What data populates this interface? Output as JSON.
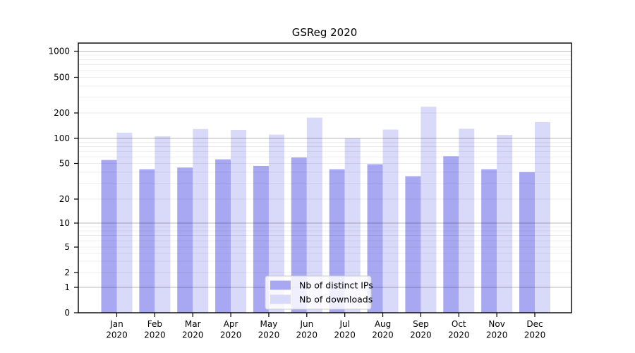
{
  "chart_data": {
    "type": "bar",
    "title": "GSReg 2020",
    "categories": [
      "Jan 2020",
      "Feb 2020",
      "Mar 2020",
      "Apr 2020",
      "May 2020",
      "Jun 2020",
      "Jul 2020",
      "Aug 2020",
      "Sep 2020",
      "Oct 2020",
      "Nov 2020",
      "Dec 2020"
    ],
    "series": [
      {
        "name": "Nb of distinct IPs",
        "color": "#a8a8f2",
        "values": [
          55,
          43,
          45,
          56,
          47,
          59,
          43,
          49,
          36,
          61,
          43,
          40
        ]
      },
      {
        "name": "Nb of downloads",
        "color": "#d9d9f9",
        "values": [
          117,
          106,
          129,
          126,
          111,
          176,
          100,
          127,
          235,
          130,
          110,
          156
        ]
      }
    ],
    "yscale": "symlog",
    "yticks": [
      0,
      1,
      2,
      5,
      10,
      20,
      50,
      100,
      200,
      500,
      1000
    ],
    "ylim": [
      0,
      1250
    ],
    "xlabel": "",
    "ylabel": "",
    "grid": true,
    "legend_position": "lower center",
    "frame_color": "#000000",
    "major_grid_color": "#b5b5b5",
    "minor_grid_color": "#ebebeb"
  }
}
